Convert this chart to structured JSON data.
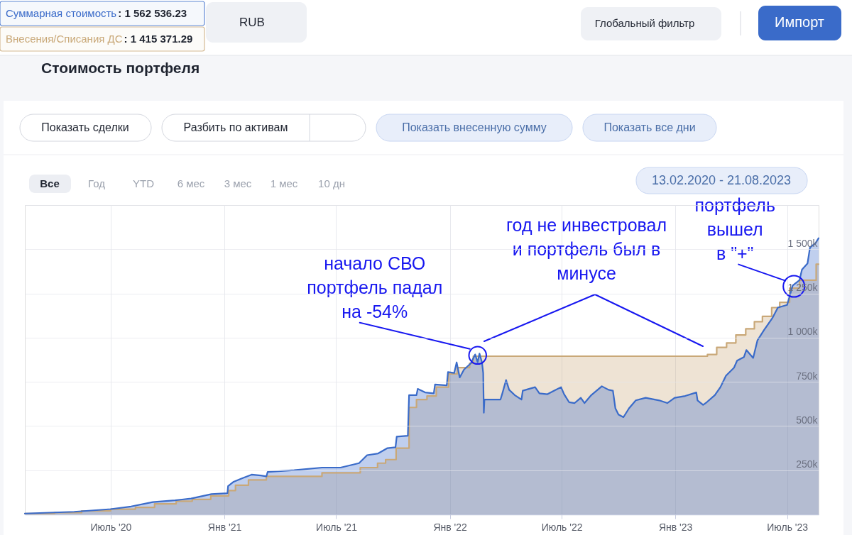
{
  "chart_data": {
    "type": "area",
    "title": "Стоимость портфеля",
    "annotations": [
      ": 1 562 536.23",
      ": 1 415 371.29",
      "RUB",
      "Глобальный фильтр",
      "Импорт",
      "Показать сделки",
      "Разбить по активам",
      "Показать внесенную сумму",
      "Показать все дни",
      "Все",
      "Год",
      "YTD",
      "6 мес",
      "3 мес",
      "1 мес",
      "10 дн",
      "13.02.2020 - 21.08.2023",
      {
        "text": "начало СВО\nпортфель падал\nна -54%",
        "x": "2022-02-15",
        "y": 900000
      },
      "год не инвестровал\nи портфель был в\nминусе",
      {
        "text": "портфель\nвышел\nв \"+\"",
        "x": "2023-07-12",
        "y": 1290000
      }
    ],
    "xlim": [
      "2020-02-13",
      "2023-08-21"
    ],
    "xticks": [
      {
        "value": "2020-07-01",
        "label": "Июль '20"
      },
      {
        "value": "2021-01-01",
        "label": "Янв '21"
      },
      {
        "value": "2021-07-01",
        "label": "Июль '21"
      },
      {
        "value": "2022-01-01",
        "label": "Янв '22"
      },
      {
        "value": "2022-07-01",
        "label": "Июль '22"
      },
      {
        "value": "2023-01-01",
        "label": "Янв '23"
      },
      {
        "value": "2023-07-01",
        "label": "Июль '23"
      }
    ],
    "ylim": [
      0,
      1750000
    ],
    "yticks": [
      {
        "value": 250000,
        "label": "250k"
      },
      {
        "value": 500000,
        "label": "500k"
      },
      {
        "value": 750000,
        "label": "750k"
      },
      {
        "value": 1000000,
        "label": "1 000k"
      },
      {
        "value": 1250000,
        "label": "1 250k"
      },
      {
        "value": 1500000,
        "label": "1 500k"
      },
      {
        "value": 1750000,
        "label": null
      }
    ],
    "grid": true,
    "series": [
      {
        "name": "Суммарная стоимость",
        "color": "#3a6bc9",
        "x": [
          "2020-02-13",
          "2020-05-03",
          "2020-07-01",
          "2020-08-03",
          "2020-09-07",
          "2020-10-13",
          "2020-11-08",
          "2020-12-11",
          "2021-01-06",
          "2021-01-07",
          "2021-01-16",
          "2021-01-30",
          "2021-02-14",
          "2021-03-01",
          "2021-03-10",
          "2021-03-12",
          "2021-04-24",
          "2021-06-08",
          "2021-07-08",
          "2021-08-07",
          "2021-08-20",
          "2021-09-07",
          "2021-09-22",
          "2021-10-05",
          "2021-10-07",
          "2021-10-25",
          "2021-10-27",
          "2021-11-08",
          "2021-11-10",
          "2021-11-22",
          "2021-12-06",
          "2021-12-08",
          "2021-12-27",
          "2021-12-29",
          "2022-01-08",
          "2022-01-12",
          "2022-01-17",
          "2022-01-24",
          "2022-02-04",
          "2022-02-11",
          "2022-02-15",
          "2022-02-18",
          "2022-02-22",
          "2022-02-24",
          "2022-02-25",
          "2022-02-26",
          "2022-03-24",
          "2022-03-27",
          "2022-04-02",
          "2022-04-07",
          "2022-04-16",
          "2022-04-27",
          "2022-04-29",
          "2022-05-19",
          "2022-05-26",
          "2022-06-08",
          "2022-06-19",
          "2022-06-30",
          "2022-07-05",
          "2022-07-13",
          "2022-07-22",
          "2022-08-01",
          "2022-08-07",
          "2022-08-18",
          "2022-09-04",
          "2022-09-15",
          "2022-09-22",
          "2022-09-26",
          "2022-10-01",
          "2022-10-09",
          "2022-10-18",
          "2022-10-29",
          "2022-11-14",
          "2022-12-06",
          "2022-12-19",
          "2022-12-31",
          "2023-01-17",
          "2023-02-04",
          "2023-02-06",
          "2023-02-15",
          "2023-02-21",
          "2023-03-06",
          "2023-03-15",
          "2023-03-24",
          "2023-04-06",
          "2023-04-11",
          "2023-04-22",
          "2023-04-26",
          "2023-05-07",
          "2023-05-14",
          "2023-05-25",
          "2023-06-07",
          "2023-06-16",
          "2023-07-01",
          "2023-07-10",
          "2023-07-21",
          "2023-07-25",
          "2023-08-03",
          "2023-08-07",
          "2023-08-16",
          "2023-08-21"
        ],
        "values": [
          5000,
          15000,
          30000,
          45000,
          70000,
          80000,
          90000,
          115000,
          120000,
          160000,
          185000,
          205000,
          225000,
          220000,
          215000,
          240000,
          250000,
          265000,
          265000,
          290000,
          335000,
          345000,
          375000,
          380000,
          440000,
          445000,
          675000,
          675000,
          710000,
          690000,
          685000,
          735000,
          730000,
          805000,
          800000,
          860000,
          775000,
          820000,
          855000,
          905000,
          860000,
          910000,
          860000,
          800000,
          575000,
          650000,
          650000,
          685000,
          760000,
          705000,
          675000,
          650000,
          700000,
          720000,
          685000,
          680000,
          700000,
          720000,
          680000,
          635000,
          630000,
          660000,
          630000,
          675000,
          725000,
          705000,
          700000,
          600000,
          565000,
          550000,
          600000,
          645000,
          660000,
          645000,
          630000,
          660000,
          670000,
          690000,
          645000,
          620000,
          635000,
          675000,
          720000,
          785000,
          830000,
          870000,
          890000,
          930000,
          885000,
          985000,
          1045000,
          1110000,
          1170000,
          1185000,
          1295000,
          1325000,
          1385000,
          1420000,
          1510000,
          1535000,
          1562536.23
        ]
      },
      {
        "name": "Внесения/Списания ДС",
        "color": "#c9a878",
        "x": [
          "2020-02-13",
          "2020-04-01",
          "2020-04-01",
          "2020-05-15",
          "2020-05-15",
          "2020-07-01",
          "2020-07-01",
          "2020-08-10",
          "2020-08-10",
          "2020-09-10",
          "2020-09-10",
          "2020-10-15",
          "2020-10-15",
          "2020-11-10",
          "2020-11-10",
          "2020-12-10",
          "2020-12-10",
          "2021-01-08",
          "2021-01-08",
          "2021-01-19",
          "2021-01-19",
          "2021-02-09",
          "2021-02-09",
          "2021-03-10",
          "2021-03-10",
          "2021-06-08",
          "2021-06-08",
          "2021-08-09",
          "2021-08-09",
          "2021-09-06",
          "2021-09-06",
          "2021-09-19",
          "2021-09-19",
          "2021-10-06",
          "2021-10-06",
          "2021-10-27",
          "2021-10-27",
          "2021-11-08",
          "2021-11-08",
          "2021-11-25",
          "2021-11-25",
          "2021-12-10",
          "2021-12-10",
          "2021-12-30",
          "2021-12-30",
          "2022-01-13",
          "2022-01-13",
          "2022-02-02",
          "2022-02-02",
          "2022-02-08",
          "2022-02-08",
          "2023-02-22",
          "2023-02-22",
          "2023-03-09",
          "2023-03-09",
          "2023-03-25",
          "2023-03-25",
          "2023-04-09",
          "2023-04-09",
          "2023-04-25",
          "2023-04-25",
          "2023-05-09",
          "2023-05-09",
          "2023-05-22",
          "2023-05-22",
          "2023-06-06",
          "2023-06-06",
          "2023-06-19",
          "2023-06-19",
          "2023-07-05",
          "2023-07-05",
          "2023-07-21",
          "2023-07-21",
          "2023-08-17",
          "2023-08-17",
          "2023-08-21"
        ],
        "values": [
          5000,
          5000,
          10000,
          10000,
          20000,
          20000,
          30000,
          30000,
          40000,
          40000,
          60000,
          60000,
          75000,
          75000,
          85000,
          85000,
          105000,
          105000,
          135000,
          135000,
          165000,
          165000,
          195000,
          195000,
          215000,
          215000,
          235000,
          235000,
          265000,
          265000,
          290000,
          290000,
          310000,
          310000,
          375000,
          375000,
          605000,
          605000,
          650000,
          650000,
          670000,
          670000,
          720000,
          720000,
          795000,
          795000,
          830000,
          830000,
          855000,
          855000,
          895000,
          895000,
          905000,
          905000,
          945000,
          945000,
          970000,
          970000,
          1015000,
          1015000,
          1050000,
          1050000,
          1090000,
          1090000,
          1120000,
          1120000,
          1170000,
          1170000,
          1200000,
          1200000,
          1280000,
          1280000,
          1325000,
          1325000,
          1415371.29,
          1415371.29
        ]
      }
    ]
  }
}
